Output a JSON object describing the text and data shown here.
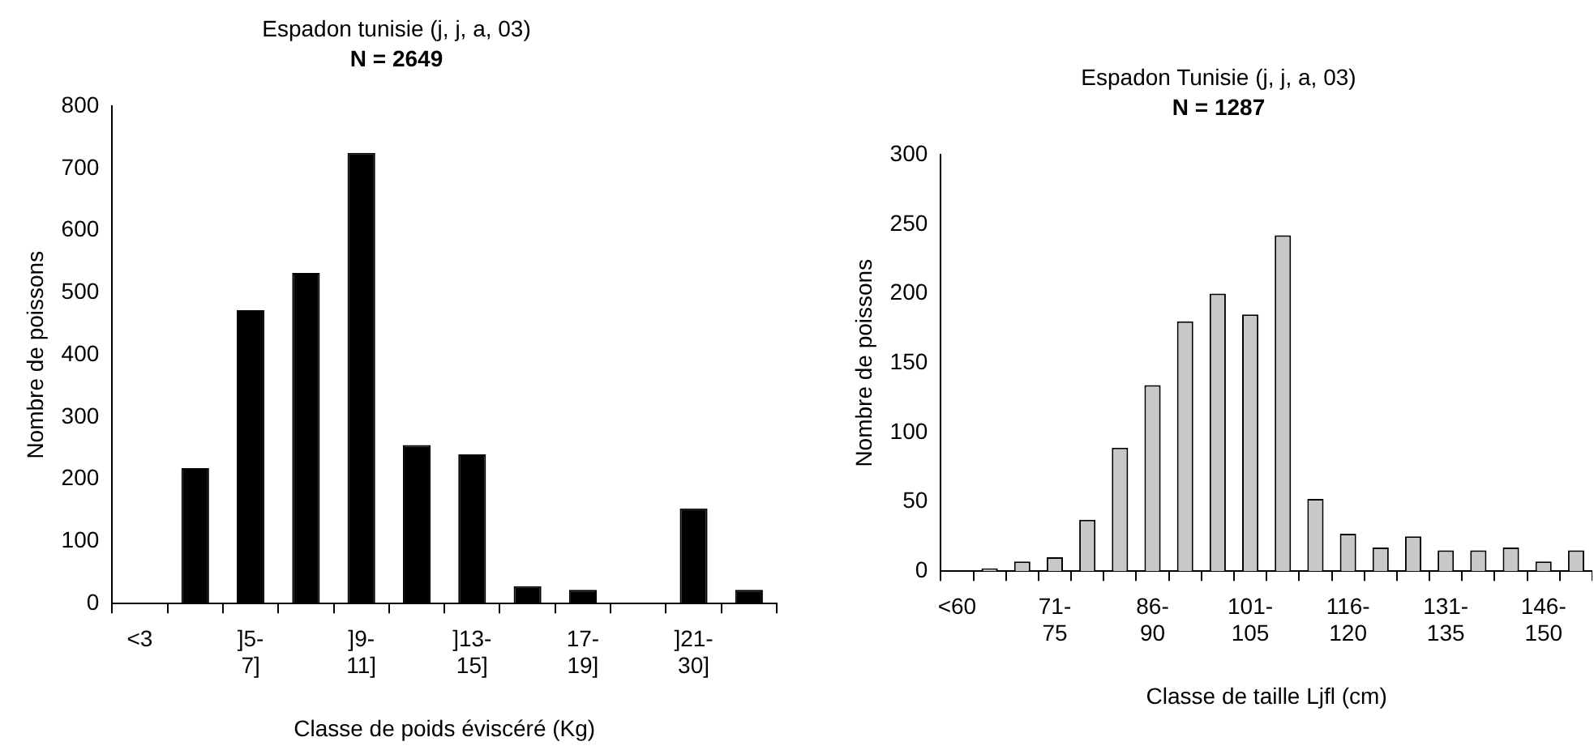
{
  "chart_data": [
    {
      "type": "bar",
      "title": "Espadon tunisie (j, j, a, 03)",
      "subtitle": "N = 2649",
      "xlabel": "Classe de poids éviscéré (Kg)",
      "ylabel": "Nombre de poissons",
      "categories": [
        "<3",
        null,
        "]5- 7]",
        null,
        "]9- 11]",
        null,
        "]13- 15]",
        null,
        "17- 19]",
        null,
        "]21- 30]",
        null
      ],
      "values": [
        0,
        218,
        472,
        532,
        725,
        255,
        240,
        28,
        22,
        0,
        153,
        22
      ],
      "color": "#000000",
      "ylim": [
        0,
        800
      ],
      "yticks": [
        0,
        100,
        200,
        300,
        400,
        500,
        600,
        700,
        800
      ],
      "grid": false,
      "legend": false
    },
    {
      "type": "bar",
      "title": "Espadon Tunisie (j, j, a, 03)",
      "subtitle": "N = 1287",
      "xlabel": "Classe de taille Ljfl (cm)",
      "ylabel": "Nombre de poissons",
      "categories": [
        "<60",
        null,
        null,
        "71- 75",
        null,
        null,
        "86- 90",
        null,
        null,
        "101- 105",
        null,
        null,
        "116- 120",
        null,
        null,
        "131- 135",
        null,
        null,
        "146- 150",
        null
      ],
      "values": [
        0,
        2,
        7,
        10,
        37,
        89,
        134,
        180,
        200,
        185,
        242,
        52,
        27,
        17,
        25,
        15,
        15,
        17,
        7,
        15
      ],
      "color": "#c8c8c8",
      "ylim": [
        0,
        300
      ],
      "yticks": [
        0,
        50,
        100,
        150,
        200,
        250,
        300
      ],
      "grid": false,
      "legend": false
    }
  ]
}
